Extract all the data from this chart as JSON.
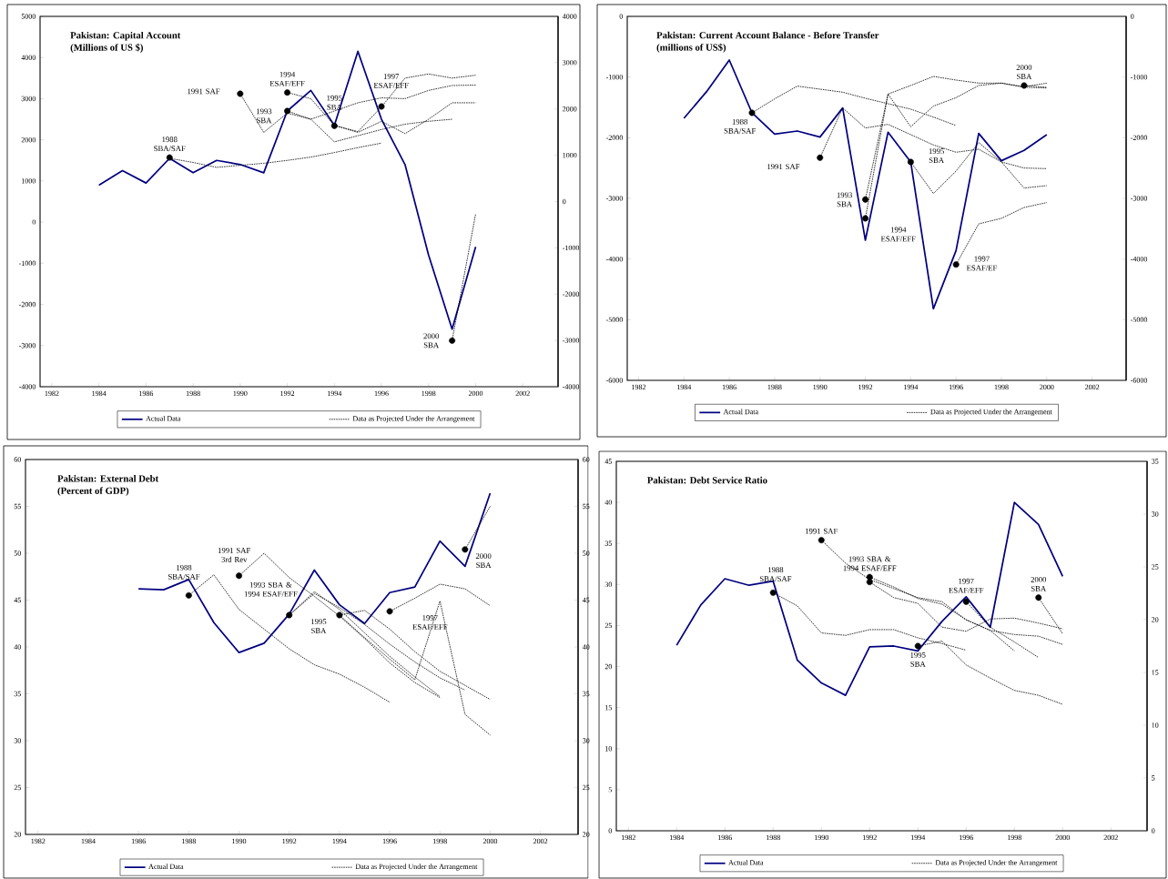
{
  "chart_data": [
    {
      "type": "line",
      "title": "Pakistan: Capital Account",
      "subtitle": "(Millions of US $)",
      "xlim": [
        1981.5,
        2003.5
      ],
      "xticks": [
        1982,
        1984,
        1986,
        1988,
        1990,
        1992,
        1994,
        1996,
        1998,
        2000,
        2002
      ],
      "ylim": [
        -4000,
        5000
      ],
      "yticks": [
        -4000,
        -3000,
        -2000,
        -1000,
        0,
        1000,
        2000,
        3000,
        4000,
        5000
      ],
      "y2lim": [
        -4000,
        4000
      ],
      "y2ticks": [
        -4000,
        -3000,
        -2000,
        -1000,
        0,
        1000,
        2000,
        3000,
        4000
      ],
      "legend": "bottom",
      "series": [
        {
          "name": "Actual Data",
          "color": "#000080",
          "type": "line",
          "line_style": "solid",
          "x": [
            1984,
            1985,
            1986,
            1987,
            1988,
            1989,
            1990,
            1991,
            1992,
            1993,
            1994,
            1995,
            1996,
            1997,
            1998,
            1999,
            2000
          ],
          "values": [
            900,
            1250,
            950,
            1550,
            1200,
            1500,
            1400,
            1200,
            2700,
            3200,
            2350,
            4150,
            2500,
            1400,
            -800,
            -2600,
            -600
          ]
        },
        {
          "name": "Data as Projected Under the Arrangement",
          "color": "#000000",
          "type": "line",
          "line_style": "dotted",
          "x": [
            1987,
            1988,
            1989,
            1990,
            1991,
            1992,
            1993,
            1994,
            1995,
            1996
          ],
          "values": [
            1550,
            1450,
            1330,
            1380,
            1430,
            1500,
            1580,
            1690,
            1810,
            1920
          ]
        },
        {
          "color": "#000000",
          "type": "line",
          "line_style": "dotted",
          "x": [
            1990,
            1991,
            1992,
            1993,
            1994,
            1995,
            1996,
            1997,
            1998,
            1999
          ],
          "values": [
            3120,
            2180,
            2650,
            2500,
            1950,
            2100,
            2250,
            2380,
            2450,
            2500
          ]
        },
        {
          "color": "#000000",
          "type": "line",
          "line_style": "dotted",
          "x": [
            1992,
            1993,
            1994,
            1995,
            1996,
            1997,
            1998,
            1999,
            2000
          ],
          "values": [
            2700,
            2500,
            2700,
            2900,
            3020,
            3000,
            3200,
            3320,
            3330
          ]
        },
        {
          "color": "#000000",
          "type": "line",
          "line_style": "dotted",
          "x": [
            1992,
            1993,
            1994,
            1995,
            1996,
            1997,
            1998,
            1999,
            2000
          ],
          "values": [
            3150,
            3000,
            2350,
            2180,
            2450,
            2150,
            2500,
            2900,
            2900
          ]
        },
        {
          "color": "#000000",
          "type": "line",
          "line_style": "dotted",
          "x": [
            1994,
            1995,
            1996,
            1997,
            1998,
            1999,
            2000
          ],
          "values": [
            2350,
            2200,
            2800,
            3500,
            3600,
            3500,
            3570
          ]
        },
        {
          "color": "#000000",
          "type": "line",
          "line_style": "dotted",
          "x": [
            1999,
            2000
          ],
          "values": [
            -2880,
            200
          ]
        },
        {
          "color": "#000000",
          "type": "scatter",
          "marker": "circle",
          "x": [
            1987,
            1990,
            1992,
            1992,
            1994,
            1996,
            1999
          ],
          "values": [
            1570,
            3120,
            3150,
            2700,
            2340,
            2810,
            -2880
          ]
        }
      ],
      "annotations": [
        {
          "text": "1988 SBA/SAF",
          "x": 1987,
          "y": 1570
        },
        {
          "text": "1991 SAF",
          "x": 1990,
          "y": 3120
        },
        {
          "text": "1993 SBA",
          "x": 1992,
          "y": 2700
        },
        {
          "text": "1994 ESAF/EFF",
          "x": 1992,
          "y": 3150
        },
        {
          "text": "1995 SBA",
          "x": 1994,
          "y": 2340
        },
        {
          "text": "1997 ESAF/EFF",
          "x": 1996,
          "y": 2810
        },
        {
          "text": "2000 SBA",
          "x": 1999,
          "y": -2880
        }
      ]
    },
    {
      "type": "line",
      "title": "Pakistan: Current Account Balance - Before Transfer",
      "subtitle": "(millions of US$)",
      "xlim": [
        1981.5,
        2003.5
      ],
      "xticks": [
        1982,
        1984,
        1986,
        1988,
        1990,
        1992,
        1994,
        1996,
        1998,
        2000,
        2002
      ],
      "ylim": [
        -6000,
        0
      ],
      "yticks": [
        -6000,
        -5000,
        -4000,
        -3000,
        -2000,
        -1000,
        0
      ],
      "y2lim": [
        -6000,
        0
      ],
      "y2ticks": [
        -6000,
        -5000,
        -4000,
        -3000,
        -2000,
        -1000,
        0
      ],
      "legend": "bottom",
      "series": [
        {
          "name": "Actual Data",
          "color": "#000080",
          "type": "line",
          "line_style": "solid",
          "x": [
            1984,
            1985,
            1986,
            1987,
            1988,
            1989,
            1990,
            1991,
            1992,
            1993,
            1994,
            1995,
            1996,
            1997,
            1998,
            1999,
            2000
          ],
          "values": [
            -1680,
            -1240,
            -720,
            -1590,
            -1940,
            -1890,
            -1990,
            -1510,
            -3690,
            -1910,
            -2400,
            -4820,
            -3860,
            -1930,
            -2380,
            -2210,
            -1950
          ]
        },
        {
          "name": "Data as Projected Under the Arrangement",
          "color": "#000000",
          "type": "line",
          "line_style": "dotted",
          "x": [
            1987,
            1988,
            1989,
            1990,
            1991,
            1992,
            1993,
            1994,
            1995,
            1996
          ],
          "values": [
            -1590,
            -1360,
            -1150,
            -1200,
            -1250,
            -1350,
            -1440,
            -1530,
            -1660,
            -1800
          ]
        },
        {
          "color": "#000000",
          "type": "line",
          "line_style": "dotted",
          "x": [
            1990,
            1991,
            1992,
            1993,
            1994,
            1995,
            1996,
            1997,
            1998,
            1999,
            2000
          ],
          "values": [
            -2330,
            -1510,
            -1840,
            -1780,
            -1950,
            -2120,
            -2240,
            -2190,
            -2400,
            -2500,
            -2510
          ]
        },
        {
          "color": "#000000",
          "type": "line",
          "line_style": "dotted",
          "x": [
            1992,
            1993,
            1994,
            1995,
            1996,
            1997,
            1998,
            1999,
            2000
          ],
          "values": [
            -3020,
            -1280,
            -1140,
            -990,
            -1050,
            -1100,
            -1100,
            -1160,
            -1100
          ]
        },
        {
          "color": "#000000",
          "type": "line",
          "line_style": "dotted",
          "x": [
            1992,
            1993,
            1994,
            1995,
            1996,
            1997,
            1998,
            1999,
            2000
          ],
          "values": [
            -3330,
            -1280,
            -1820,
            -1480,
            -1340,
            -1140,
            -1100,
            -1170,
            -1180
          ]
        },
        {
          "color": "#000000",
          "type": "line",
          "line_style": "dotted",
          "x": [
            1994,
            1995,
            1996,
            1997,
            1998,
            1999,
            2000
          ],
          "values": [
            -2400,
            -2920,
            -2550,
            -2080,
            -2400,
            -2830,
            -2790
          ]
        },
        {
          "color": "#000000",
          "type": "line",
          "line_style": "dotted",
          "x": [
            1996,
            1997,
            1998,
            1999,
            2000
          ],
          "values": [
            -4090,
            -3420,
            -3330,
            -3150,
            -3070
          ]
        },
        {
          "color": "#000000",
          "type": "line",
          "line_style": "dotted",
          "x": [
            1999,
            2000
          ],
          "values": [
            -1140,
            -1170
          ]
        },
        {
          "color": "#000000",
          "type": "scatter",
          "marker": "circle",
          "x": [
            1987,
            1990,
            1992,
            1992,
            1994,
            1996,
            1999
          ],
          "values": [
            -1590,
            -2330,
            -3020,
            -3330,
            -2400,
            -4090,
            -1140
          ]
        }
      ],
      "annotations": [
        {
          "text": "1988 SBA/SAF",
          "x": 1987,
          "y": -1590
        },
        {
          "text": "1991 SAF",
          "x": 1990,
          "y": -2330
        },
        {
          "text": "1993 SBA",
          "x": 1992,
          "y": -3020
        },
        {
          "text": "1994 ESAF/EFF",
          "x": 1992,
          "y": -3330
        },
        {
          "text": "1995 SBA",
          "x": 1994,
          "y": -2400
        },
        {
          "text": "1997 ESAF/EF",
          "x": 1996,
          "y": -4090
        },
        {
          "text": "2000 SBA",
          "x": 1999,
          "y": -1140
        }
      ]
    },
    {
      "type": "line",
      "title": "Pakistan: External Debt",
      "subtitle": "(Percent of GDP)",
      "xlim": [
        1981.5,
        2003.5
      ],
      "xticks": [
        1982,
        1984,
        1986,
        1988,
        1990,
        1992,
        1994,
        1996,
        1998,
        2000,
        2002
      ],
      "ylim": [
        20,
        60
      ],
      "yticks": [
        20,
        25,
        30,
        35,
        40,
        45,
        50,
        55,
        60
      ],
      "y2lim": [
        20,
        60
      ],
      "y2ticks": [
        20,
        25,
        30,
        35,
        40,
        45,
        50,
        55,
        60
      ],
      "legend": "bottom",
      "series": [
        {
          "name": "Actual Data",
          "color": "#000080",
          "type": "line",
          "line_style": "solid",
          "x": [
            1986,
            1987,
            1988,
            1989,
            1990,
            1991,
            1992,
            1993,
            1994,
            1995,
            1996,
            1997,
            1998,
            1999,
            2000
          ],
          "values": [
            46.2,
            46.1,
            47.2,
            42.6,
            39.4,
            40.4,
            43.5,
            48.2,
            44.5,
            42.5,
            45.8,
            46.4,
            51.3,
            48.6,
            56.4
          ]
        },
        {
          "name": "Data as Projected Under the Arrangement",
          "color": "#000000",
          "type": "line",
          "line_style": "dotted",
          "x": [
            1988,
            1989,
            1990,
            1991,
            1992,
            1993,
            1994,
            1995,
            1996
          ],
          "values": [
            45.5,
            47.7,
            44.0,
            41.9,
            39.8,
            38.1,
            37.1,
            35.7,
            34.1
          ]
        },
        {
          "color": "#000000",
          "type": "line",
          "line_style": "dotted",
          "x": [
            1990,
            1991,
            1992,
            1993,
            1994,
            1995,
            1996,
            1997,
            1998
          ],
          "values": [
            47.6,
            50.0,
            47.4,
            45.4,
            43.3,
            40.9,
            38.3,
            36.2,
            34.6
          ]
        },
        {
          "color": "#000000",
          "type": "line",
          "line_style": "dotted",
          "x": [
            1992,
            1993,
            1994,
            1995,
            1996,
            1997,
            1998,
            1999
          ],
          "values": [
            43.4,
            45.7,
            44.2,
            42.4,
            40.3,
            38.4,
            36.7,
            35.4
          ]
        },
        {
          "color": "#000000",
          "type": "line",
          "line_style": "dotted",
          "x": [
            1992,
            1993,
            1994,
            1995,
            1996,
            1997,
            1998
          ],
          "values": [
            43.4,
            45.9,
            44.0,
            41.5,
            39.0,
            36.8,
            34.7
          ]
        },
        {
          "color": "#000000",
          "type": "line",
          "line_style": "dotted",
          "x": [
            1994,
            1995,
            1996,
            1997,
            1998,
            1999,
            2000
          ],
          "values": [
            43.4,
            43.9,
            41.9,
            39.5,
            37.4,
            35.9,
            34.4
          ]
        },
        {
          "color": "#000000",
          "type": "line",
          "line_style": "dotted",
          "x": [
            1994,
            1995,
            1996,
            1997,
            1998,
            1999,
            2000
          ],
          "values": [
            43.4,
            41.0,
            38.7,
            36.5,
            44.9,
            32.8,
            30.6
          ]
        },
        {
          "color": "#000000",
          "type": "line",
          "line_style": "dotted",
          "x": [
            1996,
            1997,
            1998,
            1999,
            2000
          ],
          "values": [
            43.8,
            45.2,
            46.7,
            46.2,
            44.4
          ]
        },
        {
          "color": "#000000",
          "type": "line",
          "line_style": "dotted",
          "x": [
            1999,
            2000
          ],
          "values": [
            50.4,
            55.0
          ]
        },
        {
          "color": "#000000",
          "type": "scatter",
          "marker": "circle",
          "x": [
            1988,
            1990,
            1992,
            1994,
            1996,
            1999
          ],
          "values": [
            45.5,
            47.6,
            43.4,
            43.4,
            43.8,
            50.4
          ]
        }
      ],
      "annotations": [
        {
          "text": "1988 SBA/SAF",
          "x": 1988,
          "y": 45.5
        },
        {
          "text": "1991 SAF 3rd Rev",
          "x": 1990,
          "y": 47.6
        },
        {
          "text": "1993 SBA & 1994 ESAF/EFF",
          "x": 1992,
          "y": 43.4
        },
        {
          "text": "1995 SBA",
          "x": 1994,
          "y": 43.4
        },
        {
          "text": "1997 ESAF/EFF",
          "x": 1996,
          "y": 43.8
        },
        {
          "text": "2000 SBA",
          "x": 1999,
          "y": 50.4
        }
      ]
    },
    {
      "type": "line",
      "title": "Pakistan: Debt Service Ratio",
      "xlim": [
        1981.5,
        2003.5
      ],
      "xticks": [
        1982,
        1984,
        1986,
        1988,
        1990,
        1992,
        1994,
        1996,
        1998,
        2000,
        2002
      ],
      "ylim": [
        0,
        45
      ],
      "yticks": [
        0,
        5,
        10,
        15,
        20,
        25,
        30,
        35,
        40,
        45
      ],
      "y2lim": [
        0,
        35
      ],
      "y2ticks": [
        0,
        5,
        10,
        15,
        20,
        25,
        30,
        35
      ],
      "legend": "bottom",
      "series": [
        {
          "name": "Actual Data",
          "color": "#000080",
          "type": "line",
          "line_style": "solid",
          "x": [
            1984,
            1985,
            1986,
            1987,
            1988,
            1989,
            1990,
            1991,
            1992,
            1993,
            1994,
            1995,
            1996,
            1997,
            1998,
            1999,
            2000
          ],
          "values": [
            22.6,
            27.5,
            30.7,
            29.9,
            30.4,
            20.8,
            18.0,
            16.5,
            22.4,
            22.5,
            21.9,
            25.5,
            28.5,
            24.8,
            40.0,
            37.3,
            31.0
          ]
        },
        {
          "name": "Data as Projected Under the Arrangement",
          "color": "#000000",
          "type": "line",
          "line_style": "dotted",
          "x": [
            1988,
            1989,
            1990,
            1991,
            1992,
            1993,
            1994,
            1995,
            1996
          ],
          "values": [
            29.0,
            27.4,
            24.1,
            23.8,
            24.5,
            24.5,
            23.5,
            22.8,
            22.0
          ]
        },
        {
          "color": "#000000",
          "type": "line",
          "line_style": "dotted",
          "x": [
            1990,
            1991,
            1992,
            1993,
            1994,
            1995,
            1996,
            1997,
            1998,
            1999,
            2000
          ],
          "values": [
            35.4,
            32.6,
            30.6,
            29.5,
            28.4,
            27.9,
            25.7,
            24.4,
            23.9,
            23.7,
            22.7
          ]
        },
        {
          "color": "#000000",
          "type": "line",
          "line_style": "dotted",
          "x": [
            1992,
            1993,
            1994,
            1995,
            1996,
            1997,
            1998
          ],
          "values": [
            30.9,
            29.7,
            28.3,
            27.6,
            25.7,
            24.4,
            21.9
          ]
        },
        {
          "color": "#000000",
          "type": "line",
          "line_style": "dotted",
          "x": [
            1992,
            1993,
            1994,
            1995,
            1996,
            1997,
            1998,
            1999,
            2000
          ],
          "values": [
            30.3,
            28.4,
            27.7,
            24.8,
            24.3,
            25.8,
            25.9,
            25.3,
            24.6
          ]
        },
        {
          "color": "#000000",
          "type": "line",
          "line_style": "dotted",
          "x": [
            1994,
            1995,
            1996,
            1997,
            1998,
            1999,
            2000
          ],
          "values": [
            22.5,
            23.1,
            20.2,
            18.6,
            17.1,
            16.5,
            15.4
          ]
        },
        {
          "color": "#000000",
          "type": "line",
          "line_style": "dotted",
          "x": [
            1996,
            1997,
            1998,
            1999
          ],
          "values": [
            27.9,
            24.8,
            23.0,
            21.1
          ]
        },
        {
          "color": "#000000",
          "type": "line",
          "line_style": "dotted",
          "x": [
            1999,
            2000
          ],
          "values": [
            28.4,
            24.0
          ]
        },
        {
          "color": "#000000",
          "type": "scatter",
          "marker": "circle",
          "x": [
            1988,
            1990,
            1992,
            1992,
            1994,
            1996,
            1999
          ],
          "values": [
            29.0,
            35.4,
            30.9,
            30.3,
            22.5,
            27.9,
            28.4
          ]
        }
      ],
      "annotations": [
        {
          "text": "1988 SBA/SAF",
          "x": 1988,
          "y": 29.0
        },
        {
          "text": "1991 SAF",
          "x": 1990,
          "y": 35.4
        },
        {
          "text": "1993 SBA & 1994 ESAF/EFF",
          "x": 1992,
          "y": 30.9
        },
        {
          "text": "1995 SBA",
          "x": 1994,
          "y": 22.5
        },
        {
          "text": "1997 ESAF/EFF",
          "x": 1996,
          "y": 27.9
        },
        {
          "text": "2000 SBA",
          "x": 1999,
          "y": 28.4
        }
      ]
    }
  ]
}
